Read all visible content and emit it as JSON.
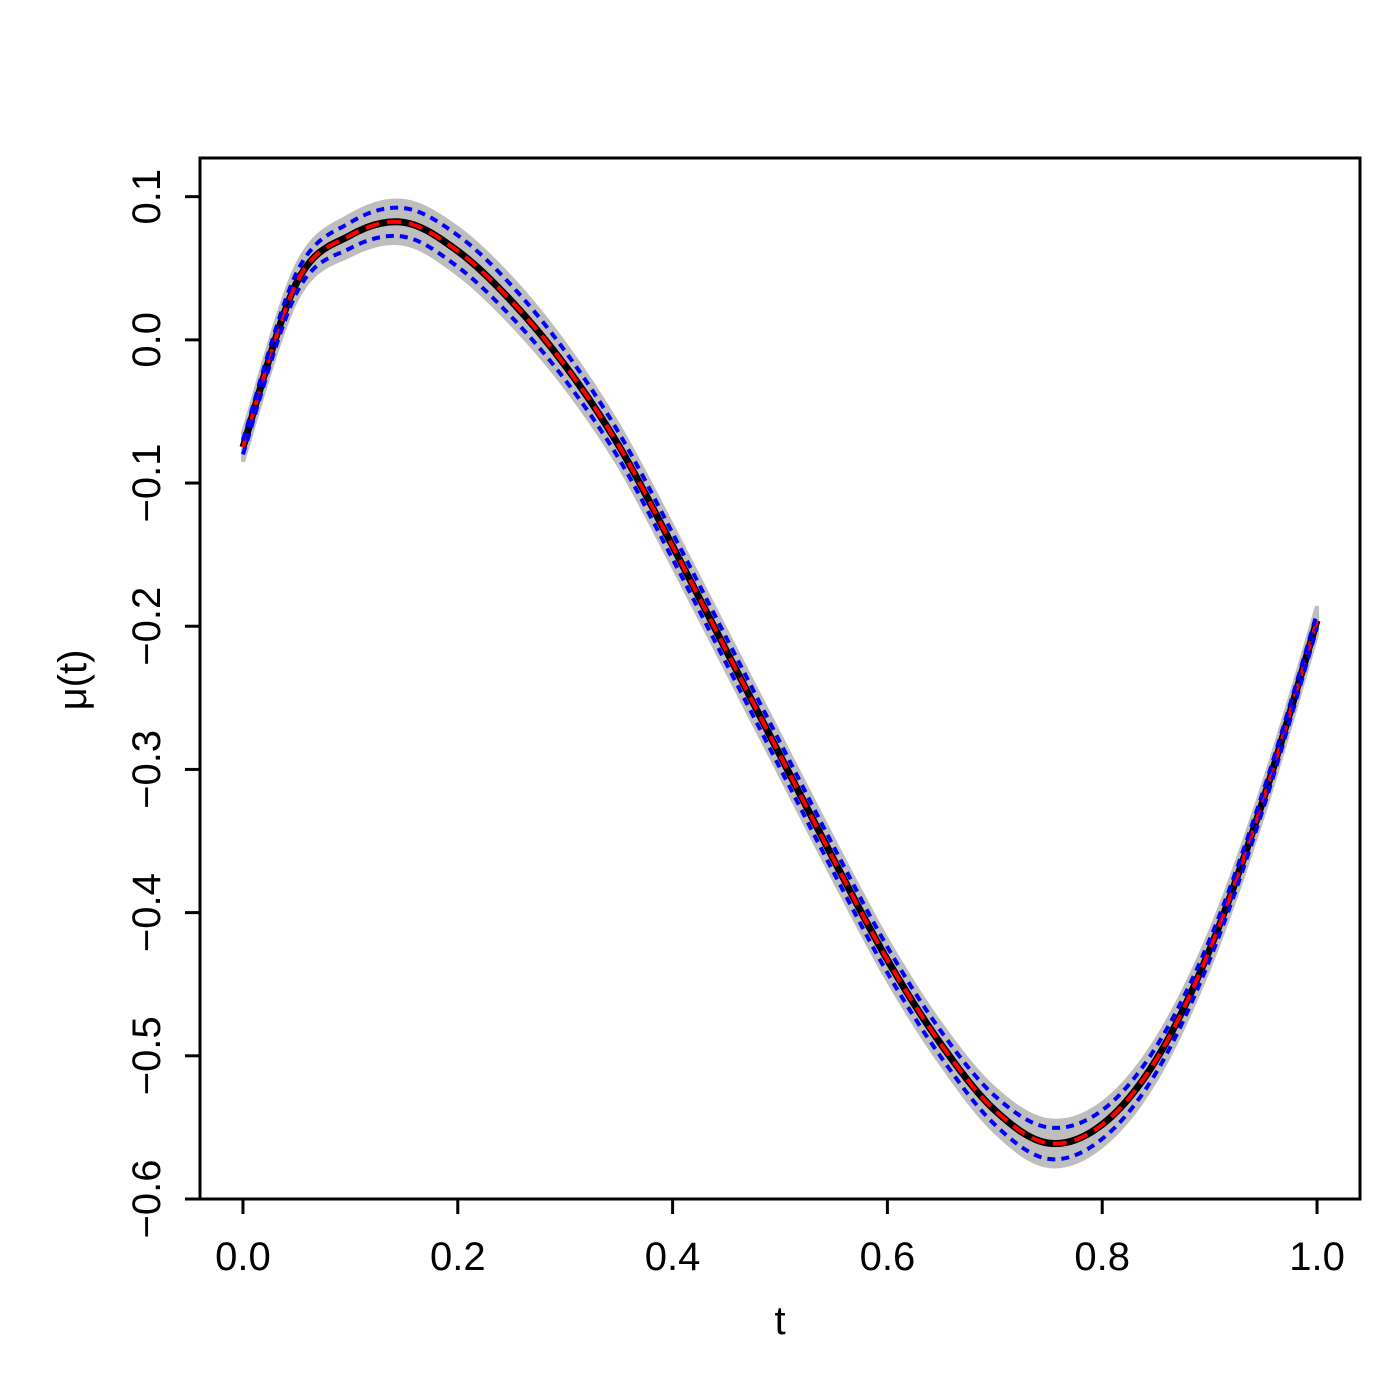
{
  "chart_data": {
    "type": "line",
    "x_label": "t",
    "y_label": "μ(t)",
    "x": [
      0,
      0.05,
      0.1,
      0.15,
      0.2,
      0.25,
      0.3,
      0.35,
      0.4,
      0.45,
      0.5,
      0.55,
      0.6,
      0.65,
      0.7,
      0.75,
      0.8,
      0.85,
      0.9,
      0.95,
      1
    ],
    "band": {
      "color": "#bebebe",
      "upper": [
        -0.065,
        0.052,
        0.087,
        0.097,
        0.078,
        0.043,
        -0.003,
        -0.06,
        -0.13,
        -0.203,
        -0.276,
        -0.349,
        -0.419,
        -0.478,
        -0.523,
        -0.545,
        -0.533,
        -0.489,
        -0.414,
        -0.31,
        -0.186
      ],
      "lower": [
        -0.085,
        0.028,
        0.059,
        0.067,
        0.046,
        0.011,
        -0.033,
        -0.088,
        -0.158,
        -0.231,
        -0.304,
        -0.377,
        -0.447,
        -0.506,
        -0.553,
        -0.577,
        -0.563,
        -0.517,
        -0.438,
        -0.332,
        -0.206
      ]
    },
    "series": [
      {
        "color": "#000000",
        "dash": "solid",
        "values": [
          -0.075,
          0.04,
          0.073,
          0.082,
          0.062,
          0.027,
          -0.018,
          -0.074,
          -0.144,
          -0.217,
          -0.29,
          -0.363,
          -0.433,
          -0.492,
          -0.538,
          -0.561,
          -0.548,
          -0.503,
          -0.426,
          -0.321,
          -0.196
        ]
      },
      {
        "color": "#ff0000",
        "dash": "dashed",
        "values": [
          -0.075,
          0.04,
          0.073,
          0.082,
          0.062,
          0.027,
          -0.018,
          -0.074,
          -0.144,
          -0.217,
          -0.29,
          -0.363,
          -0.433,
          -0.492,
          -0.538,
          -0.561,
          -0.548,
          -0.503,
          -0.426,
          -0.321,
          -0.196
        ]
      },
      {
        "color": "#0000ff",
        "dash": "dotted",
        "values": [
          -0.07,
          0.047,
          0.082,
          0.092,
          0.073,
          0.038,
          -0.008,
          -0.065,
          -0.135,
          -0.208,
          -0.281,
          -0.354,
          -0.424,
          -0.483,
          -0.528,
          -0.55,
          -0.538,
          -0.494,
          -0.419,
          -0.315,
          -0.191
        ]
      },
      {
        "color": "#0000ff",
        "dash": "dotted",
        "values": [
          -0.08,
          0.033,
          0.064,
          0.072,
          0.051,
          0.016,
          -0.028,
          -0.083,
          -0.153,
          -0.226,
          -0.299,
          -0.372,
          -0.442,
          -0.501,
          -0.548,
          -0.572,
          -0.558,
          -0.512,
          -0.433,
          -0.327,
          -0.201
        ]
      }
    ],
    "xlim": [
      -0.04,
      1.04
    ],
    "ylim": [
      -0.6,
      0.127
    ],
    "xticks": [
      {
        "value": 0,
        "label": "0.0"
      },
      0.2,
      0.4,
      0.6,
      0.8,
      {
        "value": 1,
        "label": "1.0"
      }
    ],
    "yticks": [
      {
        "value": -0.6,
        "label": "−0.6"
      },
      {
        "value": -0.5,
        "label": "−0.5"
      },
      {
        "value": -0.4,
        "label": "−0.4"
      },
      {
        "value": -0.3,
        "label": "−0.3"
      },
      {
        "value": -0.2,
        "label": "−0.2"
      },
      {
        "value": -0.1,
        "label": "−0.1"
      },
      {
        "value": 0,
        "label": "0.0"
      },
      0.1
    ]
  }
}
